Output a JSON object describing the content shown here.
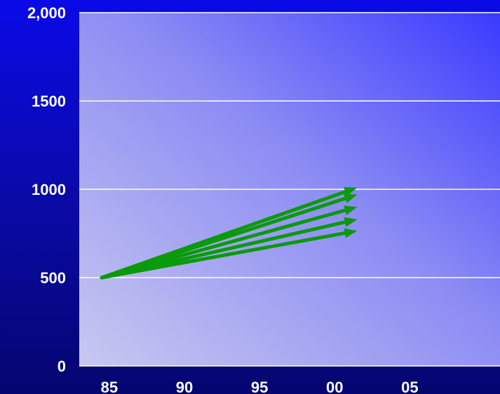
{
  "chart_data": {
    "type": "line",
    "title": "",
    "xlabel": "",
    "ylabel": "",
    "xlim": [
      1983,
      2011
    ],
    "ylim": [
      0,
      2000
    ],
    "x_ticks": [
      {
        "value": 1985,
        "label": "85"
      },
      {
        "value": 1990,
        "label": "90"
      },
      {
        "value": 1995,
        "label": "95"
      },
      {
        "value": 2000,
        "label": "00"
      },
      {
        "value": 2005,
        "label": "05"
      }
    ],
    "y_ticks": [
      {
        "value": 0,
        "label": "0"
      },
      {
        "value": 500,
        "label": "500"
      },
      {
        "value": 1000,
        "label": "1000"
      },
      {
        "value": 1500,
        "label": "1500"
      },
      {
        "value": 2000,
        "label": "2,000"
      }
    ],
    "grid": true,
    "legend": "none",
    "arrow_color": "#0a9a0a",
    "series": [
      {
        "x": [
          1984.5,
          2001.5
        ],
        "y": [
          500,
          1010
        ]
      },
      {
        "x": [
          1984.5,
          2001.5
        ],
        "y": [
          500,
          970
        ]
      },
      {
        "x": [
          1984.5,
          2001.5
        ],
        "y": [
          500,
          900
        ]
      },
      {
        "x": [
          1984.5,
          2001.5
        ],
        "y": [
          500,
          830
        ]
      },
      {
        "x": [
          1984.5,
          2001.5
        ],
        "y": [
          500,
          765
        ]
      }
    ]
  }
}
